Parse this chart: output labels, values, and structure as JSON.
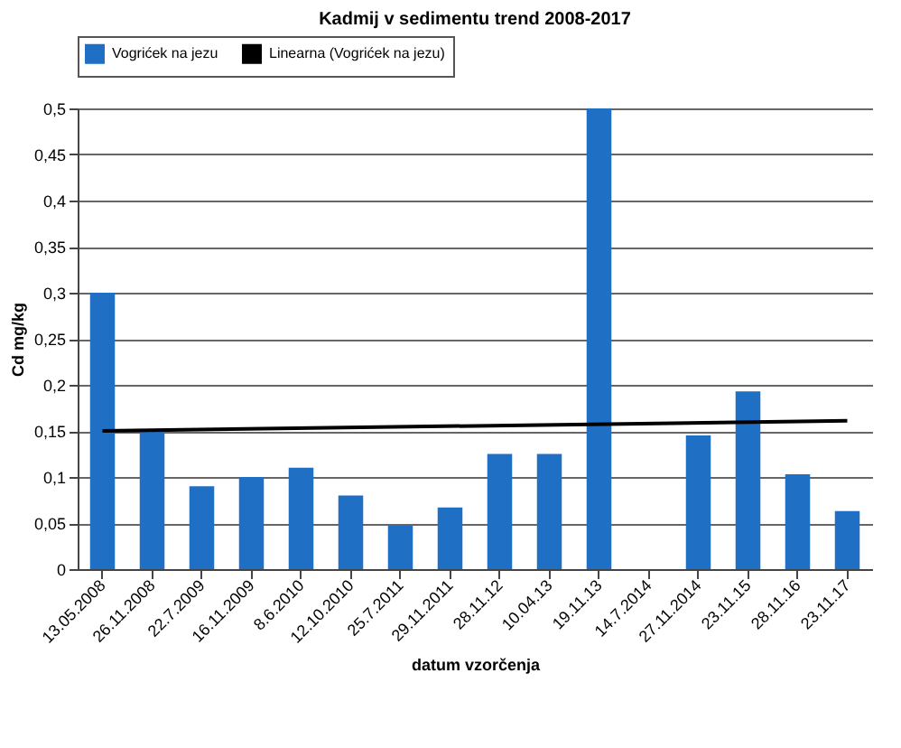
{
  "chart_data": {
    "type": "bar",
    "title": "Kadmij v sedimentu  trend 2008-2017",
    "xlabel": "datum vzorčenja",
    "ylabel": "Cd mg/kg",
    "categories": [
      "13.05.2008",
      "26.11.2008",
      "22.7.2009",
      "16.11.2009",
      "8.6.2010",
      "12.10.2010",
      "25.7.2011",
      "29.11.2011",
      "28.11.12",
      "10.04.13",
      "19.11.13",
      "14.7.2014",
      "27.11.2014",
      "23.11.15",
      "28.11.16",
      "23.11.17"
    ],
    "series": [
      {
        "name": "Vogrićek na jezu",
        "color": "#1f6fc4",
        "values": [
          0.3,
          0.15,
          0.09,
          0.1,
          0.11,
          0.08,
          0.047,
          0.067,
          0.125,
          0.125,
          0.5,
          null,
          0.145,
          0.193,
          0.103,
          0.063
        ]
      },
      {
        "name": "Linearna (Vogrićek na jezu)",
        "type": "line",
        "color": "#000000",
        "x": [
          "13.05.2008",
          "23.11.17"
        ],
        "values": [
          0.15,
          0.161
        ]
      }
    ],
    "ylim": [
      0,
      0.5
    ],
    "yticks": [
      {
        "value": 0,
        "label": "0"
      },
      {
        "value": 0.05,
        "label": "0,05"
      },
      {
        "value": 0.1,
        "label": "0,1"
      },
      {
        "value": 0.15,
        "label": "0,15"
      },
      {
        "value": 0.2,
        "label": "0,2"
      },
      {
        "value": 0.25,
        "label": "0,25"
      },
      {
        "value": 0.3,
        "label": "0,3"
      },
      {
        "value": 0.35,
        "label": "0,35"
      },
      {
        "value": 0.4,
        "label": "0,4"
      },
      {
        "value": 0.45,
        "label": "0,45"
      },
      {
        "value": 0.5,
        "label": "0,5"
      }
    ],
    "grid": "y",
    "legend": "top"
  }
}
